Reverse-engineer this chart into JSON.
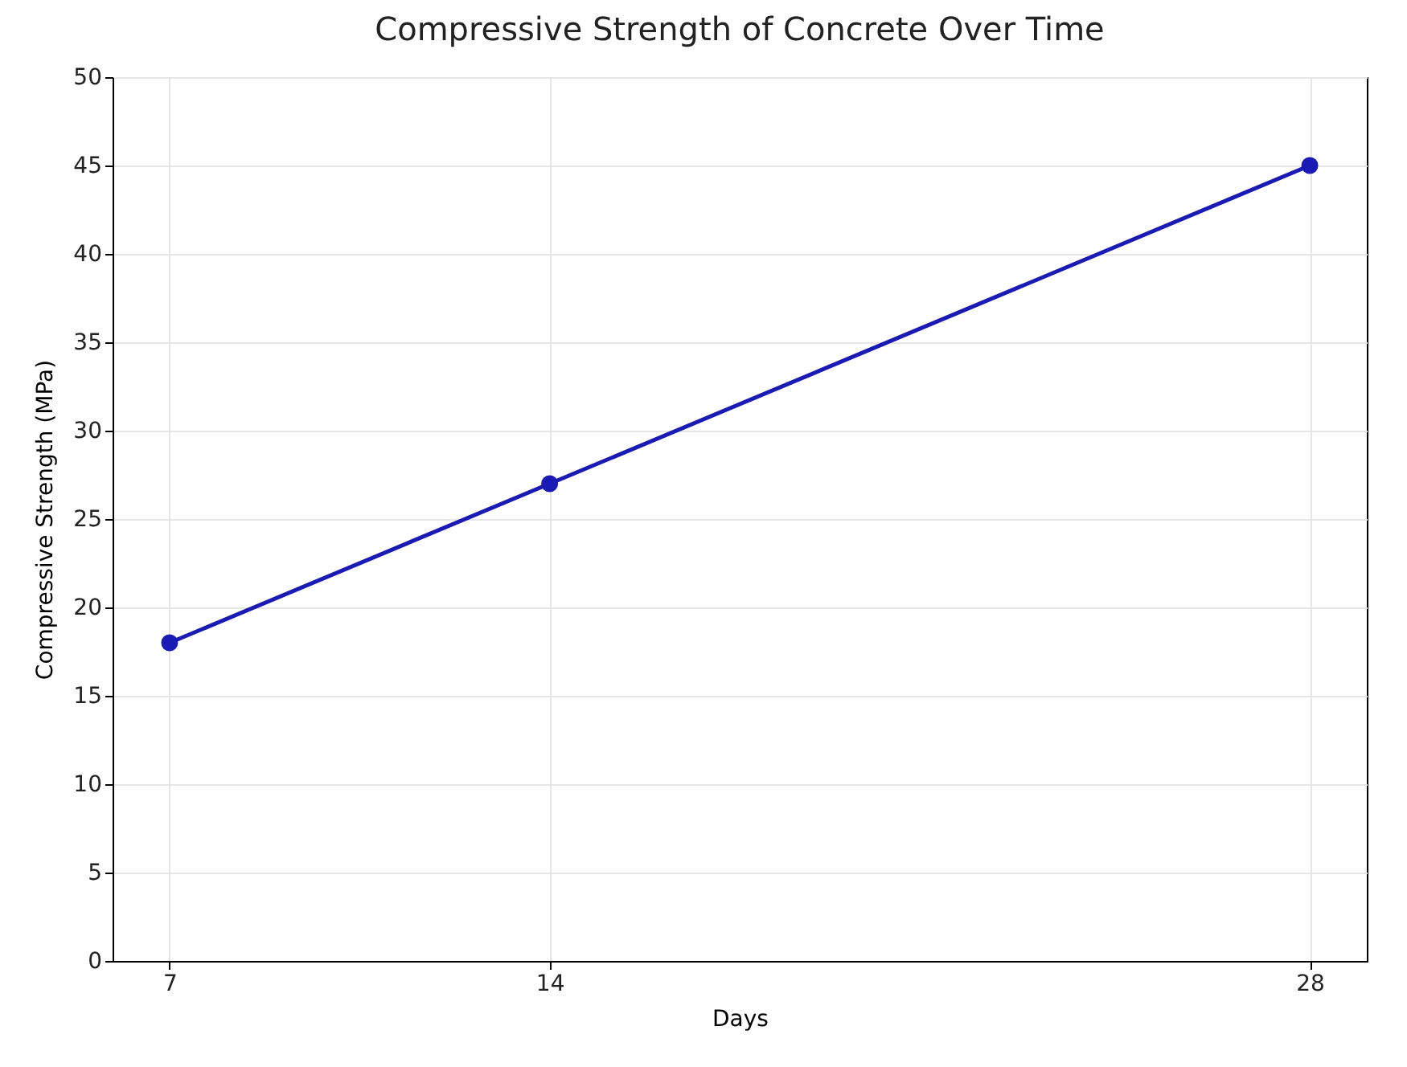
{
  "chart_data": {
    "type": "line",
    "title": "Compressive Strength of Concrete Over Time",
    "xlabel": "Days",
    "ylabel": "Compressive Strength (MPa)",
    "x": [
      7,
      14,
      28
    ],
    "series": [
      {
        "color": "#1a1ab4",
        "values": [
          18,
          27,
          45
        ]
      }
    ],
    "xlim": [
      5.95,
      29.05
    ],
    "xticks": [
      7,
      14,
      28
    ],
    "ylim": [
      0,
      50
    ],
    "yticks": [
      0,
      5,
      10,
      15,
      20,
      25,
      30,
      35,
      40,
      45,
      50
    ],
    "grid": true,
    "marker": "circle",
    "line_style": "solid"
  }
}
